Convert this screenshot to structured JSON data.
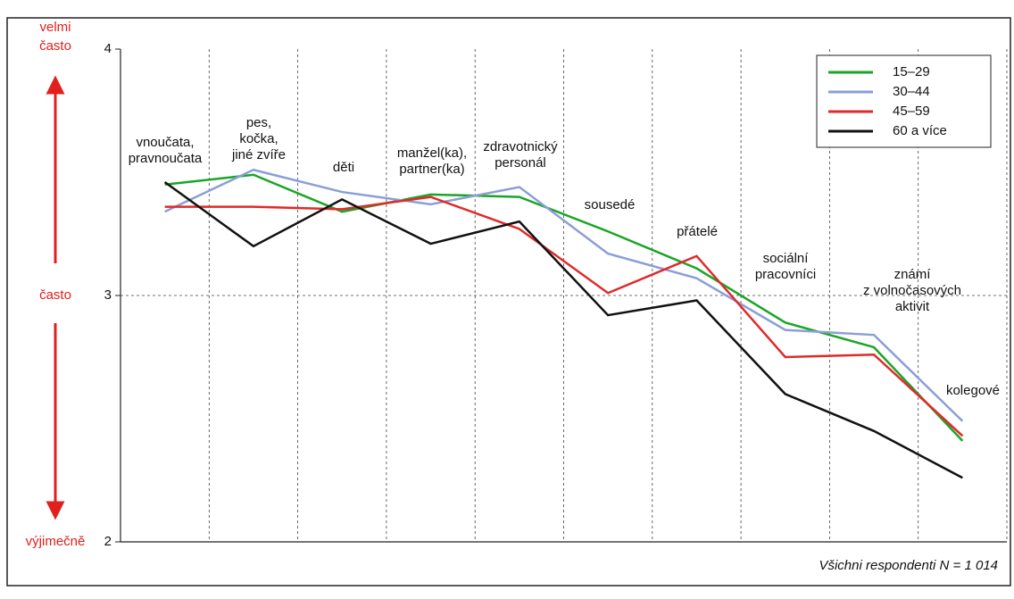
{
  "chart_data": {
    "type": "line",
    "categories": [
      "vnoučata,\npravnoučata",
      "pes,\nkočka,\njiné zvíře",
      "děti",
      "manžel(ka),\npartner(ka)",
      "zdravotnický\npersonál",
      "sousedé",
      "přátelé",
      "sociální\npracovníci",
      "známí\nz volnočasových\naktivit",
      "kolegové"
    ],
    "series": [
      {
        "name": "15–29",
        "color": "#1aa527",
        "values": [
          3.45,
          3.49,
          3.34,
          3.41,
          3.4,
          3.26,
          3.11,
          2.89,
          2.79,
          2.41
        ]
      },
      {
        "name": "30–44",
        "color": "#8a9fd6",
        "values": [
          3.34,
          3.51,
          3.42,
          3.37,
          3.44,
          3.17,
          3.07,
          2.86,
          2.84,
          2.49
        ]
      },
      {
        "name": "45–59",
        "color": "#e02a2a",
        "values": [
          3.36,
          3.36,
          3.35,
          3.4,
          3.27,
          3.01,
          3.16,
          2.75,
          2.76,
          2.43
        ]
      },
      {
        "name": "60 a více",
        "color": "#111111",
        "values": [
          3.46,
          3.2,
          3.39,
          3.21,
          3.3,
          2.92,
          2.98,
          2.6,
          2.45,
          2.26
        ]
      }
    ],
    "ylim": [
      2,
      4
    ],
    "yticks": [
      2,
      3,
      4
    ],
    "ytick_descriptions": [
      "výjimečně",
      "často",
      "velmi\nčasto"
    ],
    "note": "Všichni respondenti N = 1 014",
    "grid": true,
    "legend": "upper right"
  }
}
